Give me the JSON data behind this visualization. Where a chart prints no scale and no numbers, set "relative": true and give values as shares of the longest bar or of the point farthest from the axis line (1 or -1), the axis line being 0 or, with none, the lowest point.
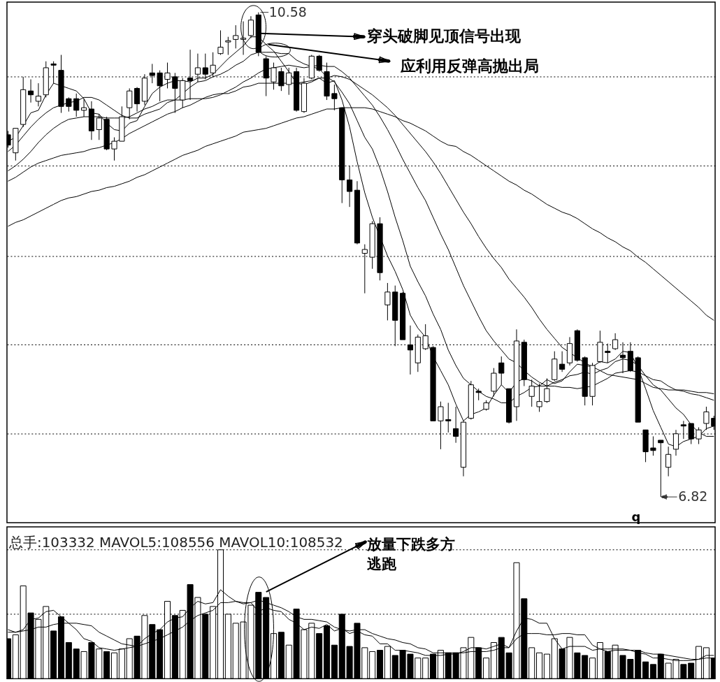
{
  "chart_data": [
    {
      "type": "candlestick",
      "categories": [
        null,
        null,
        null,
        null,
        null,
        null,
        null,
        null,
        null,
        null,
        null,
        null,
        null,
        null,
        null,
        null,
        null,
        null,
        null,
        null,
        null,
        null,
        null,
        null,
        null,
        null,
        null,
        null,
        null,
        null,
        null,
        null,
        null,
        null,
        null,
        null,
        null,
        null,
        null,
        null,
        null,
        null,
        null,
        null,
        null,
        null,
        null,
        null,
        null,
        null,
        null,
        null,
        null,
        null,
        null,
        null,
        null,
        null,
        null,
        null,
        null,
        null,
        null,
        null,
        null,
        null,
        null,
        null,
        null,
        null,
        null,
        null,
        null,
        null,
        null,
        null,
        null,
        null,
        null,
        null,
        null,
        null,
        null,
        null,
        null,
        null,
        null,
        null,
        null,
        null,
        null,
        null,
        null,
        null
      ],
      "ohlc": [
        [
          9.63,
          9.66,
          9.53,
          9.55
        ],
        [
          9.49,
          9.68,
          9.43,
          9.68
        ],
        [
          9.71,
          10.08,
          9.69,
          9.98
        ],
        [
          9.97,
          10.06,
          9.88,
          9.94
        ],
        [
          9.89,
          10.03,
          9.85,
          9.93
        ],
        [
          9.94,
          10.2,
          9.92,
          10.15
        ],
        [
          10.18,
          10.2,
          10.03,
          10.17
        ],
        [
          10.13,
          10.25,
          9.8,
          9.85
        ],
        [
          9.91,
          9.92,
          9.81,
          9.85
        ],
        [
          9.91,
          9.95,
          9.77,
          9.82
        ],
        [
          9.82,
          9.91,
          9.77,
          9.84
        ],
        [
          9.83,
          9.89,
          9.59,
          9.66
        ],
        [
          9.67,
          9.79,
          9.59,
          9.76
        ],
        [
          9.75,
          9.77,
          9.51,
          9.52
        ],
        [
          9.52,
          9.61,
          9.43,
          9.58
        ],
        [
          9.58,
          9.85,
          9.58,
          9.77
        ],
        [
          9.84,
          9.99,
          9.75,
          9.97
        ],
        [
          9.99,
          10.0,
          9.81,
          9.87
        ],
        [
          9.89,
          10.1,
          9.86,
          10.07
        ],
        [
          10.11,
          10.18,
          10.03,
          10.09
        ],
        [
          10.11,
          10.13,
          9.89,
          10.01
        ],
        [
          10.06,
          10.19,
          9.99,
          10.11
        ],
        [
          10.08,
          10.11,
          9.8,
          9.99
        ],
        [
          9.9,
          10.07,
          9.84,
          10.05
        ],
        [
          10.07,
          10.29,
          9.9,
          10.05
        ],
        [
          10.1,
          10.26,
          10.04,
          10.15
        ],
        [
          10.15,
          10.26,
          10.06,
          10.1
        ],
        [
          10.11,
          10.27,
          10.08,
          10.17
        ],
        [
          10.26,
          10.44,
          10.25,
          10.31
        ],
        [
          10.35,
          10.39,
          10.25,
          10.36
        ],
        [
          10.37,
          10.48,
          10.3,
          10.4
        ],
        [
          10.37,
          10.51,
          10.25,
          10.38
        ],
        [
          10.4,
          10.55,
          10.38,
          10.52
        ],
        [
          10.56,
          10.58,
          10.24,
          10.27
        ],
        [
          10.22,
          10.24,
          9.93,
          10.07
        ],
        [
          10.04,
          10.19,
          9.98,
          10.15
        ],
        [
          10.12,
          10.15,
          9.97,
          10.01
        ],
        [
          10.02,
          10.15,
          9.94,
          10.11
        ],
        [
          10.12,
          10.15,
          9.81,
          9.82
        ],
        [
          9.81,
          10.07,
          9.8,
          10.03
        ],
        [
          10.07,
          10.25,
          10.06,
          10.24
        ],
        [
          10.24,
          10.25,
          10.12,
          10.13
        ],
        [
          10.12,
          10.19,
          9.9,
          9.93
        ],
        [
          9.95,
          10.02,
          9.82,
          9.91
        ],
        [
          9.84,
          9.84,
          9.1,
          9.28
        ],
        [
          9.28,
          9.39,
          9.07,
          9.19
        ],
        [
          9.2,
          9.27,
          8.78,
          8.79
        ],
        [
          8.71,
          8.78,
          8.4,
          8.74
        ],
        [
          8.68,
          8.96,
          8.59,
          8.94
        ],
        [
          8.94,
          8.99,
          8.5,
          8.56
        ],
        [
          8.31,
          8.48,
          8.19,
          8.41
        ],
        [
          8.41,
          8.46,
          7.99,
          8.19
        ],
        [
          8.4,
          8.41,
          8.04,
          8.04
        ],
        [
          8.0,
          8.15,
          7.77,
          7.96
        ],
        [
          7.86,
          8.08,
          7.79,
          8.06
        ],
        [
          7.97,
          8.16,
          7.96,
          8.07
        ],
        [
          7.98,
          7.99,
          7.41,
          7.41
        ],
        [
          7.41,
          7.56,
          7.19,
          7.52
        ],
        [
          7.42,
          7.55,
          7.32,
          7.41
        ],
        [
          7.35,
          7.52,
          7.24,
          7.29
        ],
        [
          7.05,
          7.41,
          6.98,
          7.4
        ],
        [
          7.43,
          7.72,
          7.42,
          7.69
        ],
        [
          7.64,
          7.66,
          7.57,
          7.63
        ],
        [
          7.5,
          7.57,
          7.49,
          7.55
        ],
        [
          7.64,
          7.82,
          7.6,
          7.78
        ],
        [
          7.86,
          7.91,
          7.69,
          7.78
        ],
        [
          7.66,
          7.66,
          7.39,
          7.4
        ],
        [
          7.52,
          8.12,
          7.41,
          8.03
        ],
        [
          8.02,
          8.04,
          7.68,
          7.73
        ],
        [
          7.6,
          7.73,
          7.52,
          7.68
        ],
        [
          7.52,
          7.7,
          7.48,
          7.56
        ],
        [
          7.56,
          7.74,
          7.55,
          7.66
        ],
        [
          7.73,
          7.95,
          7.72,
          7.89
        ],
        [
          7.85,
          7.95,
          7.79,
          7.81
        ],
        [
          7.86,
          8.06,
          7.84,
          8.01
        ],
        [
          8.11,
          8.12,
          7.87,
          7.88
        ],
        [
          7.9,
          7.91,
          7.53,
          7.6
        ],
        [
          7.6,
          7.86,
          7.53,
          7.84
        ],
        [
          7.87,
          8.11,
          7.86,
          8.02
        ],
        [
          7.95,
          8.01,
          7.86,
          7.94
        ],
        [
          7.97,
          8.09,
          7.96,
          8.04
        ],
        [
          7.92,
          8.02,
          7.78,
          7.9
        ],
        [
          7.95,
          8.02,
          7.79,
          7.8
        ],
        [
          7.9,
          7.91,
          7.4,
          7.4
        ],
        [
          7.34,
          7.34,
          7.09,
          7.17
        ],
        [
          7.2,
          7.29,
          7.14,
          7.18
        ],
        [
          7.26,
          7.26,
          6.82,
          7.24
        ],
        [
          7.05,
          7.21,
          6.98,
          7.15
        ],
        [
          7.19,
          7.34,
          7.14,
          7.31
        ],
        [
          7.38,
          7.41,
          7.27,
          7.37
        ],
        [
          7.39,
          7.39,
          7.23,
          7.27
        ],
        [
          7.27,
          7.36,
          7.23,
          7.34
        ],
        [
          7.39,
          7.52,
          7.34,
          7.48
        ],
        [
          7.43,
          7.45,
          7.34,
          7.37
        ]
      ],
      "colors": [
        "#000000",
        "#ffffff",
        "#ffffff",
        "#000000",
        "#ffffff",
        "#ffffff",
        "#000000",
        "#000000",
        "#000000",
        "#000000",
        "#ffffff",
        "#000000",
        "#ffffff",
        "#000000",
        "#ffffff",
        "#ffffff",
        "#ffffff",
        "#000000",
        "#ffffff",
        "#000000",
        "#000000",
        "#ffffff",
        "#000000",
        "#ffffff",
        "#000000",
        "#ffffff",
        "#000000",
        "#ffffff",
        "#ffffff",
        "#ffffff",
        "#ffffff",
        "#ffffff",
        "#ffffff",
        "#000000",
        "#000000",
        "#ffffff",
        "#000000",
        "#ffffff",
        "#000000",
        "#ffffff",
        "#ffffff",
        "#000000",
        "#000000",
        "#000000",
        "#000000",
        "#000000",
        "#000000",
        "#ffffff",
        "#ffffff",
        "#000000",
        "#ffffff",
        "#000000",
        "#000000",
        "#000000",
        "#ffffff",
        "#ffffff",
        "#000000",
        "#ffffff",
        "#000000",
        "#000000",
        "#ffffff",
        "#ffffff",
        "#000000",
        "#ffffff",
        "#ffffff",
        "#000000",
        "#000000",
        "#ffffff",
        "#000000",
        "#ffffff",
        "#ffffff",
        "#ffffff",
        "#ffffff",
        "#000000",
        "#ffffff",
        "#000000",
        "#000000",
        "#ffffff",
        "#ffffff",
        "#000000",
        "#ffffff",
        "#000000",
        "#000000",
        "#000000",
        "#000000",
        "#000000",
        "#000000",
        "#ffffff",
        "#ffffff",
        "#000000",
        "#000000",
        "#ffffff",
        "#ffffff",
        "#000000"
      ],
      "series": [
        {
          "type": "line",
          "color": "#000000",
          "values": [
            9.58,
            9.61,
            9.7,
            9.8,
            9.82,
            9.94,
            10.03,
            10.01,
            9.99,
            9.97,
            9.91,
            9.8,
            9.79,
            9.72,
            9.67,
            9.66,
            9.72,
            9.74,
            9.85,
            9.95,
            10.0,
            10.03,
            10.05,
            10.05,
            10.04,
            10.07,
            10.07,
            10.1,
            10.16,
            10.22,
            10.27,
            10.32,
            10.39,
            10.39,
            10.33,
            10.28,
            10.2,
            10.12,
            10.03,
            10.02,
            10.04,
            10.07,
            10.03,
            10.05,
            9.9,
            9.69,
            9.42,
            9.18,
            8.99,
            8.84,
            8.69,
            8.57,
            8.43,
            8.23,
            8.13,
            8.06,
            7.91,
            7.8,
            7.69,
            7.54,
            7.41,
            7.46,
            7.48,
            7.51,
            7.61,
            7.69,
            7.63,
            7.71,
            7.74,
            7.72,
            7.68,
            7.73,
            7.7,
            7.72,
            7.79,
            7.85,
            7.84,
            7.83,
            7.87,
            7.86,
            7.89,
            7.95,
            7.94,
            7.82,
            7.66,
            7.49,
            7.36,
            7.23,
            7.21,
            7.25,
            7.27,
            7.29,
            7.35,
            7.37
          ]
        },
        {
          "type": "line",
          "color": "#000000",
          "values": [
            9.5,
            9.55,
            9.62,
            9.69,
            9.75,
            9.8,
            9.84,
            9.86,
            9.88,
            9.89,
            9.92,
            9.92,
            9.9,
            9.86,
            9.82,
            9.78,
            9.76,
            9.76,
            9.79,
            9.81,
            9.83,
            9.88,
            9.9,
            9.95,
            10.0,
            10.04,
            10.05,
            10.08,
            10.1,
            10.13,
            10.17,
            10.2,
            10.25,
            10.27,
            10.27,
            10.27,
            10.26,
            10.26,
            10.21,
            10.18,
            10.16,
            10.14,
            10.08,
            10.04,
            9.96,
            9.87,
            9.74,
            9.61,
            9.52,
            9.37,
            9.19,
            8.99,
            8.81,
            8.61,
            8.49,
            8.38,
            8.24,
            8.12,
            7.96,
            7.84,
            7.74,
            7.69,
            7.64,
            7.6,
            7.58,
            7.55,
            7.55,
            7.6,
            7.63,
            7.67,
            7.68,
            7.68,
            7.71,
            7.73,
            7.76,
            7.77,
            7.79,
            7.77,
            7.8,
            7.82,
            7.87,
            7.89,
            7.88,
            7.84,
            7.76,
            7.69,
            7.65,
            7.58,
            7.51,
            7.46,
            7.38,
            7.32,
            7.29,
            7.29
          ]
        },
        {
          "type": "line",
          "color": "#000000",
          "values": [
            9.35,
            9.39,
            9.44,
            9.5,
            9.57,
            9.63,
            9.68,
            9.72,
            9.75,
            9.76,
            9.77,
            9.77,
            9.77,
            9.76,
            9.76,
            9.76,
            9.77,
            9.8,
            9.83,
            9.85,
            9.88,
            9.9,
            9.9,
            9.9,
            9.91,
            9.91,
            9.91,
            9.92,
            9.94,
            9.97,
            10.0,
            10.04,
            10.07,
            10.11,
            10.14,
            10.15,
            10.16,
            10.17,
            10.16,
            10.15,
            10.16,
            10.17,
            10.16,
            10.16,
            10.12,
            10.07,
            10.0,
            9.93,
            9.86,
            9.77,
            9.67,
            9.56,
            9.44,
            9.33,
            9.22,
            9.12,
            8.99,
            8.86,
            8.74,
            8.6,
            8.46,
            8.34,
            8.22,
            8.11,
            8.03,
            7.96,
            7.89,
            7.86,
            7.8,
            7.75,
            7.71,
            7.68,
            7.68,
            7.67,
            7.67,
            7.66,
            7.67,
            7.68,
            7.71,
            7.74,
            7.78,
            7.79,
            7.8,
            7.79,
            7.76,
            7.73,
            7.72,
            7.68,
            7.65,
            7.64,
            7.62,
            7.61,
            7.59,
            7.57
          ]
        },
        {
          "type": "line",
          "color": "#000000",
          "values": [
            9.27,
            9.3,
            9.34,
            9.38,
            9.41,
            9.43,
            9.45,
            9.47,
            9.48,
            9.49,
            9.5,
            9.52,
            9.53,
            9.55,
            9.57,
            9.6,
            9.64,
            9.67,
            9.7,
            9.73,
            9.76,
            9.79,
            9.81,
            9.84,
            9.86,
            9.89,
            9.92,
            9.94,
            9.95,
            9.95,
            9.97,
            10.0,
            10.01,
            10.03,
            10.03,
            10.03,
            10.03,
            10.03,
            10.03,
            10.04,
            10.05,
            10.07,
            10.07,
            10.09,
            10.08,
            10.06,
            10.02,
            9.98,
            9.94,
            9.89,
            9.84,
            9.78,
            9.71,
            9.64,
            9.57,
            9.5,
            9.42,
            9.33,
            9.23,
            9.13,
            9.03,
            8.94,
            8.84,
            8.75,
            8.67,
            8.6,
            8.51,
            8.44,
            8.37,
            8.29,
            8.2,
            8.12,
            8.05,
            7.98,
            7.94,
            7.9,
            7.86,
            7.83,
            7.8,
            7.77,
            7.76,
            7.75,
            7.74,
            7.73,
            7.7,
            7.67,
            7.66,
            7.65,
            7.65,
            7.65,
            7.64,
            7.63,
            7.63,
            7.62
          ]
        },
        {
          "type": "line",
          "color": "#000000",
          "values": [
            8.92,
            8.95,
            8.97,
            9.0,
            9.03,
            9.06,
            9.09,
            9.12,
            9.14,
            9.15,
            9.17,
            9.19,
            9.2,
            9.22,
            9.23,
            9.25,
            9.27,
            9.3,
            9.32,
            9.35,
            9.38,
            9.41,
            9.44,
            9.47,
            9.49,
            9.51,
            9.54,
            9.56,
            9.58,
            9.6,
            9.62,
            9.65,
            9.66,
            9.67,
            9.68,
            9.7,
            9.72,
            9.74,
            9.76,
            9.77,
            9.79,
            9.81,
            9.83,
            9.83,
            9.84,
            9.84,
            9.84,
            9.84,
            9.83,
            9.81,
            9.79,
            9.77,
            9.74,
            9.72,
            9.69,
            9.66,
            9.62,
            9.58,
            9.55,
            9.54,
            9.5,
            9.47,
            9.43,
            9.39,
            9.35,
            9.31,
            9.27,
            9.24,
            9.2,
            9.17,
            9.13,
            9.09,
            9.06,
            9.03,
            9.01,
            8.98,
            8.94,
            8.9,
            8.87,
            8.83,
            8.8,
            8.76,
            8.73,
            8.68,
            8.64,
            8.59,
            8.54,
            8.49,
            8.44,
            8.39,
            8.34,
            8.29,
            8.23,
            8.19
          ]
        }
      ],
      "ylim": [
        6.62,
        10.66
      ],
      "yticks": [
        {
          "value": 10.08,
          "label": null
        },
        {
          "value": 9.39,
          "label": null
        },
        {
          "value": 8.69,
          "label": null
        },
        {
          "value": 8.0,
          "label": null
        },
        {
          "value": 7.31,
          "label": null
        }
      ],
      "grid": "y",
      "annotations": [
        "10.58",
        "6.82",
        "穿头破脚见顶信号出现",
        "应利用反弹高抛出局",
        "q"
      ]
    },
    {
      "type": "bar",
      "relative": true,
      "categories": [
        null,
        null,
        null,
        null,
        null,
        null,
        null,
        null,
        null,
        null,
        null,
        null,
        null,
        null,
        null,
        null,
        null,
        null,
        null,
        null,
        null,
        null,
        null,
        null,
        null,
        null,
        null,
        null,
        null,
        null,
        null,
        null,
        null,
        null,
        null,
        null,
        null,
        null,
        null,
        null,
        null,
        null,
        null,
        null,
        null,
        null,
        null,
        null,
        null,
        null,
        null,
        null,
        null,
        null,
        null,
        null,
        null,
        null,
        null,
        null,
        null,
        null,
        null,
        null,
        null,
        null,
        null,
        null,
        null,
        null,
        null,
        null,
        null,
        null,
        null,
        null,
        null,
        null,
        null,
        null,
        null,
        null,
        null,
        null,
        null,
        null,
        null,
        null,
        null,
        null,
        null,
        null,
        null,
        null
      ],
      "series": [
        {
          "type": "bar",
          "colors": [
            "#000000",
            "#ffffff",
            "#ffffff",
            "#000000",
            "#ffffff",
            "#ffffff",
            "#000000",
            "#000000",
            "#000000",
            "#000000",
            "#ffffff",
            "#000000",
            "#ffffff",
            "#000000",
            "#ffffff",
            "#ffffff",
            "#ffffff",
            "#000000",
            "#ffffff",
            "#000000",
            "#000000",
            "#ffffff",
            "#000000",
            "#ffffff",
            "#000000",
            "#ffffff",
            "#000000",
            "#ffffff",
            "#ffffff",
            "#ffffff",
            "#ffffff",
            "#ffffff",
            "#ffffff",
            "#000000",
            "#000000",
            "#ffffff",
            "#000000",
            "#ffffff",
            "#000000",
            "#ffffff",
            "#ffffff",
            "#000000",
            "#000000",
            "#000000",
            "#000000",
            "#000000",
            "#000000",
            "#ffffff",
            "#ffffff",
            "#000000",
            "#ffffff",
            "#000000",
            "#000000",
            "#000000",
            "#ffffff",
            "#ffffff",
            "#000000",
            "#ffffff",
            "#000000",
            "#000000",
            "#ffffff",
            "#ffffff",
            "#000000",
            "#ffffff",
            "#ffffff",
            "#000000",
            "#000000",
            "#ffffff",
            "#000000",
            "#ffffff",
            "#ffffff",
            "#ffffff",
            "#ffffff",
            "#000000",
            "#ffffff",
            "#000000",
            "#000000",
            "#ffffff",
            "#ffffff",
            "#000000",
            "#ffffff",
            "#000000",
            "#000000",
            "#000000",
            "#000000",
            "#000000",
            "#000000",
            "#ffffff",
            "#ffffff",
            "#000000",
            "#000000",
            "#ffffff",
            "#ffffff",
            "#000000"
          ],
          "values": [
            0.31,
            0.34,
            0.72,
            0.51,
            0.46,
            0.56,
            0.37,
            0.48,
            0.28,
            0.23,
            0.21,
            0.28,
            0.23,
            0.21,
            0.2,
            0.23,
            0.31,
            0.33,
            0.49,
            0.42,
            0.38,
            0.6,
            0.49,
            0.53,
            0.73,
            0.63,
            0.5,
            0.56,
            1.0,
            0.5,
            0.43,
            0.44,
            0.57,
            0.67,
            0.63,
            0.35,
            0.36,
            0.26,
            0.54,
            0.38,
            0.43,
            0.35,
            0.41,
            0.26,
            0.5,
            0.25,
            0.43,
            0.24,
            0.21,
            0.22,
            0.25,
            0.18,
            0.22,
            0.19,
            0.16,
            0.16,
            0.19,
            0.22,
            0.2,
            0.2,
            0.24,
            0.32,
            0.24,
            0.16,
            0.28,
            0.32,
            0.2,
            0.9,
            0.62,
            0.24,
            0.2,
            0.19,
            0.31,
            0.23,
            0.32,
            0.2,
            0.18,
            0.16,
            0.28,
            0.21,
            0.26,
            0.18,
            0.15,
            0.22,
            0.13,
            0.11,
            0.19,
            0.12,
            0.15,
            0.11,
            0.12,
            0.25,
            0.24,
            0.16
          ]
        },
        {
          "type": "line",
          "color": "#000000",
          "values": [
            0.38,
            0.36,
            0.38,
            0.46,
            0.47,
            0.52,
            0.53,
            0.48,
            0.43,
            0.38,
            0.31,
            0.29,
            0.24,
            0.23,
            0.22,
            0.23,
            0.24,
            0.25,
            0.31,
            0.35,
            0.38,
            0.44,
            0.47,
            0.48,
            0.55,
            0.6,
            0.58,
            0.59,
            0.69,
            0.64,
            0.6,
            0.59,
            0.59,
            0.52,
            0.55,
            0.53,
            0.52,
            0.46,
            0.43,
            0.38,
            0.4,
            0.39,
            0.42,
            0.37,
            0.39,
            0.35,
            0.37,
            0.34,
            0.33,
            0.27,
            0.27,
            0.22,
            0.22,
            0.21,
            0.2,
            0.18,
            0.18,
            0.18,
            0.19,
            0.19,
            0.21,
            0.24,
            0.24,
            0.23,
            0.25,
            0.27,
            0.24,
            0.37,
            0.47,
            0.46,
            0.43,
            0.43,
            0.31,
            0.23,
            0.25,
            0.25,
            0.25,
            0.22,
            0.23,
            0.21,
            0.22,
            0.22,
            0.22,
            0.2,
            0.19,
            0.16,
            0.16,
            0.15,
            0.14,
            0.14,
            0.14,
            0.15,
            0.18,
            0.18
          ]
        },
        {
          "type": "line",
          "color": "#000000",
          "values": [
            0.36,
            0.36,
            0.37,
            0.38,
            0.4,
            0.4,
            0.42,
            0.43,
            0.43,
            0.43,
            0.42,
            0.41,
            0.36,
            0.33,
            0.3,
            0.27,
            0.26,
            0.25,
            0.27,
            0.29,
            0.31,
            0.34,
            0.37,
            0.4,
            0.45,
            0.49,
            0.51,
            0.53,
            0.59,
            0.59,
            0.6,
            0.58,
            0.59,
            0.61,
            0.59,
            0.57,
            0.55,
            0.52,
            0.48,
            0.46,
            0.46,
            0.45,
            0.44,
            0.4,
            0.38,
            0.37,
            0.38,
            0.38,
            0.35,
            0.33,
            0.31,
            0.3,
            0.28,
            0.27,
            0.24,
            0.23,
            0.2,
            0.2,
            0.2,
            0.2,
            0.2,
            0.21,
            0.21,
            0.21,
            0.22,
            0.24,
            0.24,
            0.31,
            0.35,
            0.35,
            0.35,
            0.34,
            0.34,
            0.35,
            0.35,
            0.34,
            0.34,
            0.26,
            0.23,
            0.23,
            0.23,
            0.23,
            0.22,
            0.22,
            0.2,
            0.19,
            0.19,
            0.18,
            0.17,
            0.16,
            0.15,
            0.15,
            0.16,
            0.16
          ]
        }
      ],
      "ref_lines": [
        {
          "axis": "y",
          "value": 1.0,
          "color": "#000000",
          "line_style": "dotted"
        },
        {
          "axis": "y",
          "value": 0.5,
          "color": "#000000",
          "line_style": "dotted"
        }
      ],
      "annotations": [
        "总手:103332 MAVOL5:108556 MAVOL10:108532",
        "放量下跌多方逃跑"
      ]
    }
  ]
}
